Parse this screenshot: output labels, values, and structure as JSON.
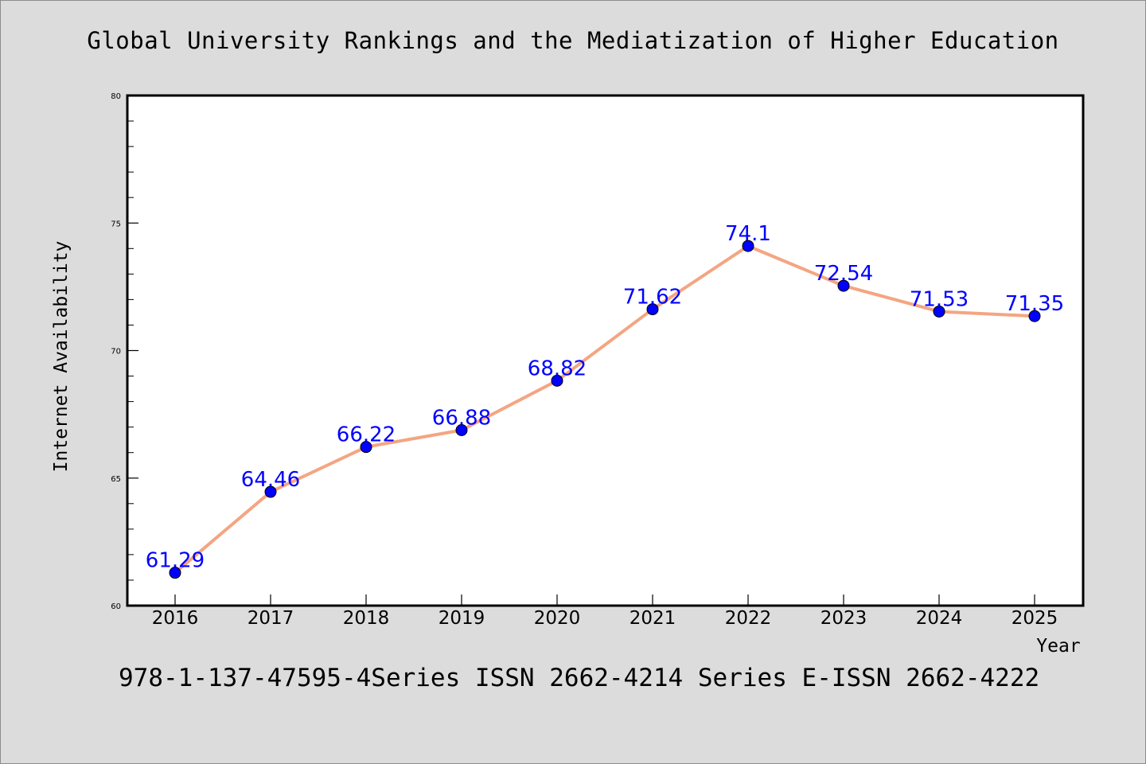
{
  "chart_data": {
    "type": "line",
    "title": "Global University Rankings and the Mediatization of Higher Education",
    "xlabel": "Year",
    "ylabel": "Internet Availability",
    "categories": [
      "2016",
      "2017",
      "2018",
      "2019",
      "2020",
      "2021",
      "2022",
      "2023",
      "2024",
      "2025"
    ],
    "values": [
      61.29,
      64.46,
      66.22,
      66.88,
      68.82,
      71.62,
      74.1,
      72.54,
      71.53,
      71.35
    ],
    "data_labels": [
      "61.29",
      "64.46",
      "66.22",
      "66.88",
      "68.82",
      "71.62",
      "74.1",
      "72.54",
      "71.53",
      "71.35"
    ],
    "ylim": [
      60,
      80
    ],
    "yticks": [
      "60",
      "65",
      "70",
      "75",
      "80"
    ],
    "line_color": "#f4a582",
    "marker_color": "#0000ff",
    "label_color": "#0000ff",
    "grid": false,
    "legend": false
  },
  "footer": {
    "text": "978-1-137-47595-4Series ISSN 2662-4214 Series E-ISSN 2662-4222"
  }
}
